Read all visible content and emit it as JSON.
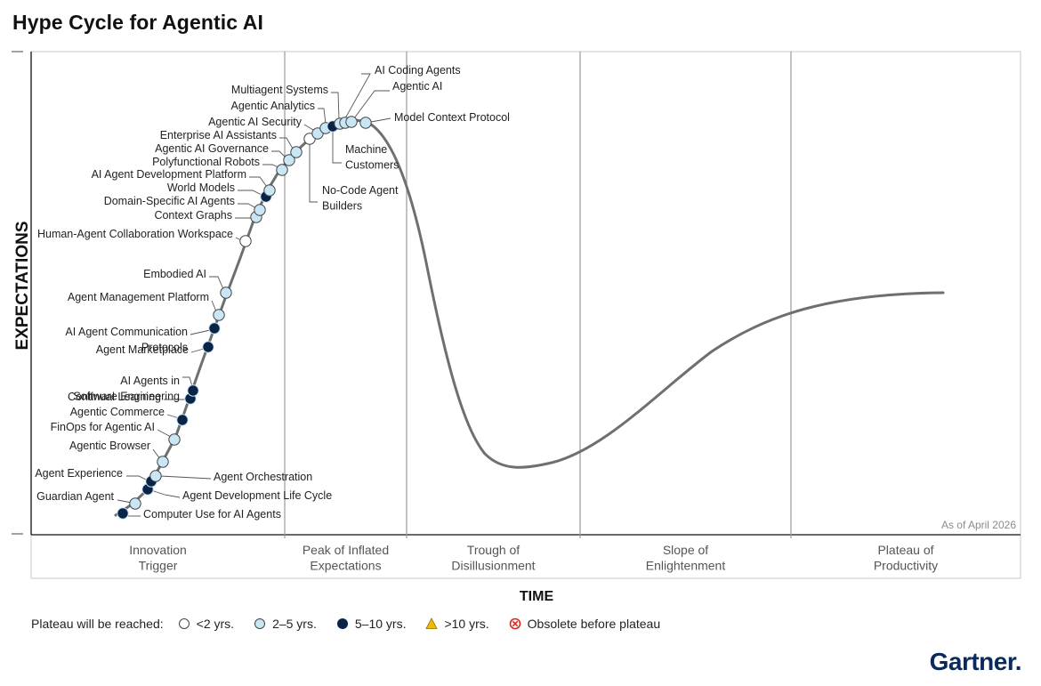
{
  "title": "Hype Cycle for Agentic AI",
  "chart_data": {
    "type": "scatter",
    "title": "Hype Cycle for Agentic AI",
    "xlabel": "TIME",
    "ylabel": "EXPECTATIONS",
    "annotation": "As of April 2026",
    "phases": [
      [
        "Innovation",
        "Trigger"
      ],
      [
        "Peak of Inflated",
        "Expectations"
      ],
      [
        "Trough of",
        "Disillusionment"
      ],
      [
        "Slope of",
        "Enlightenment"
      ],
      [
        "Plateau of",
        "Productivity"
      ]
    ],
    "categories": {
      "lt2": {
        "label": "<2 yrs.",
        "color": "#ffffff"
      },
      "2to5": {
        "label": "2–5 yrs.",
        "color": "#c9e6f5"
      },
      "5to10": {
        "label": "5–10 yrs.",
        "color": "#0a2447"
      },
      "gt10": {
        "label": ">10 yrs.",
        "color": "#f5b800"
      },
      "obsolete": {
        "label": "Obsolete before plateau",
        "color": "#d9261c"
      }
    },
    "technologies": [
      {
        "name": "Computer Use for AI Agents",
        "lines": [
          "Computer Use for AI Agents"
        ],
        "cat": "5to10"
      },
      {
        "name": "Guardian Agent",
        "lines": [
          "Guardian Agent"
        ],
        "cat": "2to5"
      },
      {
        "name": "Agent Development Life Cycle",
        "lines": [
          "Agent Development Life Cycle"
        ],
        "cat": "5to10"
      },
      {
        "name": "Agent Experience",
        "lines": [
          "Agent Experience"
        ],
        "cat": "5to10"
      },
      {
        "name": "Agent Orchestration",
        "lines": [
          "Agent Orchestration"
        ],
        "cat": "2to5"
      },
      {
        "name": "Agentic Browser",
        "lines": [
          "Agentic Browser"
        ],
        "cat": "2to5"
      },
      {
        "name": "FinOps for Agentic AI",
        "lines": [
          "FinOps for Agentic AI"
        ],
        "cat": "2to5"
      },
      {
        "name": "Agentic Commerce",
        "lines": [
          "Agentic Commerce"
        ],
        "cat": "5to10"
      },
      {
        "name": "Continual Learning",
        "lines": [
          "Continual Learning"
        ],
        "cat": "5to10"
      },
      {
        "name": "AI Agents in Software Engineering",
        "lines": [
          "AI Agents in",
          "Software Engineering"
        ],
        "cat": "5to10"
      },
      {
        "name": "Agent Marketplace",
        "lines": [
          "Agent Marketplace"
        ],
        "cat": "5to10"
      },
      {
        "name": "AI Agent Communication Protocols",
        "lines": [
          "AI Agent Communication",
          "Protocols"
        ],
        "cat": "5to10"
      },
      {
        "name": "Agent Management Platform",
        "lines": [
          "Agent Management Platform"
        ],
        "cat": "2to5"
      },
      {
        "name": "Embodied AI",
        "lines": [
          "Embodied AI"
        ],
        "cat": "2to5"
      },
      {
        "name": "Human-Agent Collaboration Workspace",
        "lines": [
          "Human-Agent Collaboration Workspace"
        ],
        "cat": "lt2"
      },
      {
        "name": "Context Graphs",
        "lines": [
          "Context Graphs"
        ],
        "cat": "2to5"
      },
      {
        "name": "Domain-Specific AI Agents",
        "lines": [
          "Domain-Specific AI Agents"
        ],
        "cat": "2to5"
      },
      {
        "name": "World Models",
        "lines": [
          "World Models"
        ],
        "cat": "5to10"
      },
      {
        "name": "AI Agent Development Platform",
        "lines": [
          "AI Agent Development Platform"
        ],
        "cat": "2to5"
      },
      {
        "name": "Polyfunctional Robots",
        "lines": [
          "Polyfunctional Robots"
        ],
        "cat": "2to5"
      },
      {
        "name": "Agentic AI Governance",
        "lines": [
          "Agentic AI Governance"
        ],
        "cat": "2to5"
      },
      {
        "name": "Enterprise AI Assistants",
        "lines": [
          "Enterprise AI Assistants"
        ],
        "cat": "2to5"
      },
      {
        "name": "No-Code Agent Builders",
        "lines": [
          "No-Code Agent",
          "Builders"
        ],
        "cat": "lt2"
      },
      {
        "name": "Agentic AI Security",
        "lines": [
          "Agentic AI Security"
        ],
        "cat": "2to5"
      },
      {
        "name": "Agentic Analytics",
        "lines": [
          "Agentic Analytics"
        ],
        "cat": "2to5"
      },
      {
        "name": "Machine Customers",
        "lines": [
          "Machine",
          "Customers"
        ],
        "cat": "5to10"
      },
      {
        "name": "Multiagent Systems",
        "lines": [
          "Multiagent Systems"
        ],
        "cat": "2to5"
      },
      {
        "name": "AI Coding Agents",
        "lines": [
          "AI Coding Agents"
        ],
        "cat": "2to5"
      },
      {
        "name": "Agentic AI",
        "lines": [
          "Agentic AI"
        ],
        "cat": "2to5"
      },
      {
        "name": "Model Context Protocol",
        "lines": [
          "Model Context Protocol"
        ],
        "cat": "2to5"
      }
    ]
  },
  "legend": {
    "label": "Plateau will be reached:",
    "items": [
      {
        "label": "<2 yrs.",
        "icon": "circle-white"
      },
      {
        "label": "2–5 yrs.",
        "icon": "circle-light-blue"
      },
      {
        "label": "5–10 yrs.",
        "icon": "circle-navy"
      },
      {
        "label": ">10 yrs.",
        "icon": "triangle-yellow"
      },
      {
        "label": "Obsolete before plateau",
        "icon": "circle-x-red"
      }
    ]
  },
  "brand": {
    "logo_text": "Gartner",
    "logo_dot": ".",
    "color": "#0b2a5b"
  }
}
